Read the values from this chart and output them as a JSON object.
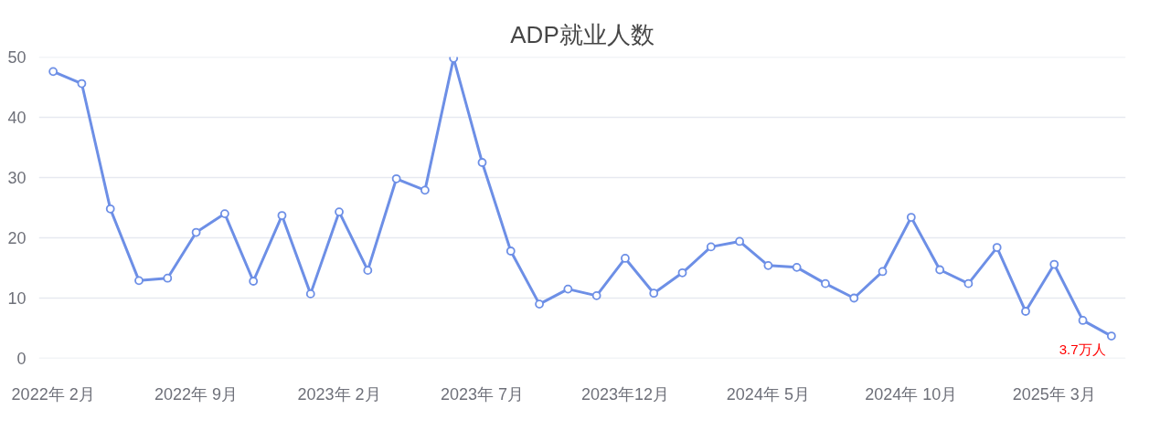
{
  "chart_data": {
    "type": "line",
    "title": "ADP就业人数",
    "categories": [
      "2022年 2月",
      null,
      null,
      null,
      null,
      "2022年 9月",
      null,
      null,
      null,
      null,
      "2023年 2月",
      null,
      null,
      null,
      null,
      "2023年 7月",
      null,
      null,
      null,
      null,
      "2023年12月",
      null,
      null,
      null,
      null,
      "2024年 5月",
      null,
      null,
      null,
      null,
      "2024年 10月",
      null,
      null,
      null,
      null,
      "2025年 3月",
      null,
      null
    ],
    "series": [
      {
        "color": "#6d8fe6",
        "values": [
          47.6,
          45.6,
          24.8,
          12.9,
          13.3,
          20.9,
          24.0,
          12.8,
          23.7,
          10.7,
          24.3,
          14.6,
          29.8,
          27.9,
          49.8,
          32.5,
          17.8,
          9.0,
          11.5,
          10.4,
          16.6,
          10.8,
          14.2,
          18.5,
          19.4,
          15.4,
          15.1,
          12.4,
          10.0,
          14.4,
          23.4,
          14.7,
          12.4,
          18.4,
          7.8,
          15.6,
          6.3,
          3.7
        ]
      }
    ],
    "ylim": [
      0,
      50
    ],
    "yticks": [
      0,
      10,
      20,
      30,
      40,
      50
    ],
    "grid": "y",
    "marker": "circle",
    "line_style": "solid",
    "annotations": [
      "3.7万人"
    ]
  }
}
